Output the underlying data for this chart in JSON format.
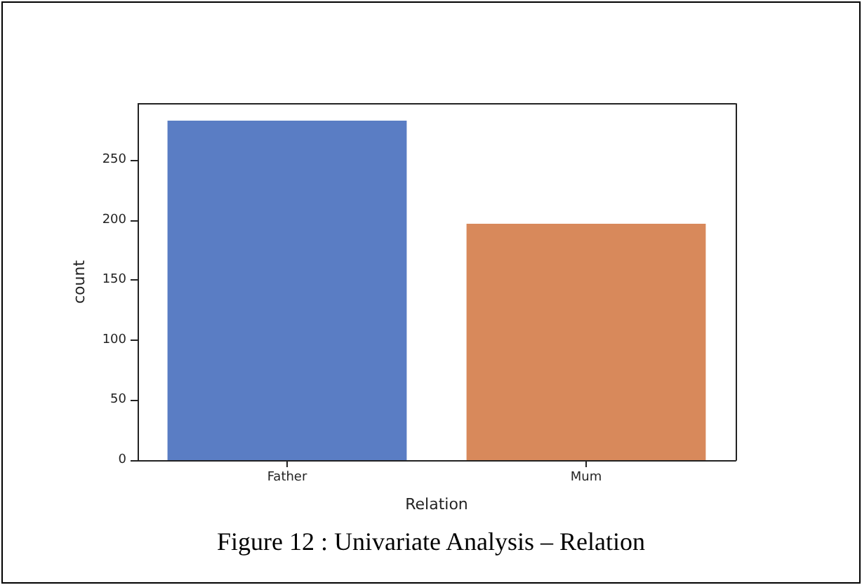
{
  "chart_data": {
    "type": "bar",
    "categories": [
      "Father",
      "Mum"
    ],
    "values": [
      283,
      197
    ],
    "colors": [
      "#5a7dc4",
      "#d8895b"
    ],
    "xlabel": "Relation",
    "ylabel": "count",
    "ylim": [
      0,
      297
    ],
    "yticks": [
      0,
      50,
      100,
      150,
      200,
      250
    ],
    "grid": false,
    "annotations": [
      "Figure 12 : Univariate Analysis – Relation"
    ]
  }
}
